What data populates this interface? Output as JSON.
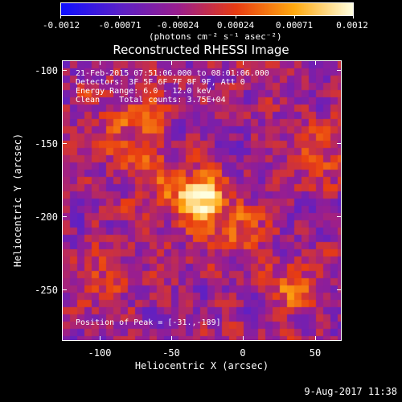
{
  "colorbar": {
    "tick_labels": [
      "-0.0012",
      "-0.00071",
      "-0.00024",
      "0.00024",
      "0.00071",
      "0.0012"
    ],
    "units": "(photons cm⁻² s⁻¹ asec⁻²)",
    "stops": [
      "#1010ff",
      "#5a20c8",
      "#9a1e8e",
      "#e83c12",
      "#ffaa10",
      "#ffffe0"
    ]
  },
  "title": "Reconstructed RHESSI Image",
  "overlay": {
    "time_range": "21-Feb-2015 07:51:06.000 to 08:01:06.000",
    "detectors": "Detectors: 3F 5F 6F 7F 8F 9F, Att 0",
    "energy": "Energy Range: 6.0 - 12.0 keV",
    "clean": "Clean    Total counts: 3.75E+04",
    "peak": "Position of Peak = [-31.,-189]"
  },
  "axes": {
    "xlabel": "Heliocentric X (arcsec)",
    "ylabel": "Heliocentric Y (arcsec)",
    "xticks": [
      "-100",
      "-50",
      "0",
      "50"
    ],
    "yticks": [
      "-100",
      "-150",
      "-200",
      "-250"
    ],
    "xlim": [
      -127,
      67
    ],
    "ylim": [
      -283,
      -95
    ]
  },
  "peak_position": [
    -31,
    -189
  ],
  "timestamp": "9-Aug-2017 11:38"
}
